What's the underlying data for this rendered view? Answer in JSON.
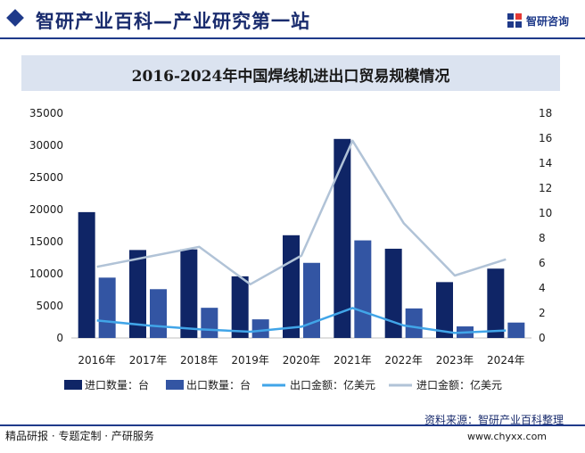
{
  "header": {
    "title": "智研产业百科—产业研究第一站",
    "logo_text": "智研咨询"
  },
  "chart_data": {
    "type": "bar",
    "title": "2016-2024年中国焊线机进出口贸易规模情况",
    "categories": [
      "2016年",
      "2017年",
      "2018年",
      "2019年",
      "2020年",
      "2021年",
      "2022年",
      "2023年",
      "2024年"
    ],
    "series": [
      {
        "name": "进口数量：台",
        "kind": "bar",
        "axis": "left",
        "color": "#0f2566",
        "values": [
          19600,
          13700,
          13800,
          9600,
          16000,
          31000,
          13900,
          8700,
          10800
        ]
      },
      {
        "name": "出口数量：台",
        "kind": "bar",
        "axis": "left",
        "color": "#3355a3",
        "values": [
          9400,
          7600,
          4700,
          2900,
          11700,
          15200,
          4600,
          1800,
          2400
        ]
      },
      {
        "name": "出口金额：亿美元",
        "kind": "line",
        "axis": "right",
        "color": "#41a5e8",
        "values": [
          1.4,
          1.0,
          0.7,
          0.5,
          0.9,
          2.4,
          1.0,
          0.4,
          0.6
        ]
      },
      {
        "name": "进口金额：亿美元",
        "kind": "line",
        "axis": "right",
        "color": "#b1c3d7",
        "values": [
          5.7,
          6.5,
          7.3,
          4.3,
          6.6,
          15.8,
          9.2,
          5.0,
          6.3
        ]
      }
    ],
    "y_left": {
      "min": 0,
      "max": 35000,
      "ticks": [
        0,
        5000,
        10000,
        15000,
        20000,
        25000,
        30000,
        35000
      ]
    },
    "y_right": {
      "min": 0,
      "max": 18,
      "ticks": [
        0,
        2,
        4,
        6,
        8,
        10,
        12,
        14,
        16,
        18
      ]
    },
    "grid": false,
    "legend_position": "bottom"
  },
  "source": "资料来源：智研产业百科整理",
  "footer": {
    "left": "精品研报 · 专题定制 · 产研服务",
    "right": "www.chyxx.com"
  }
}
